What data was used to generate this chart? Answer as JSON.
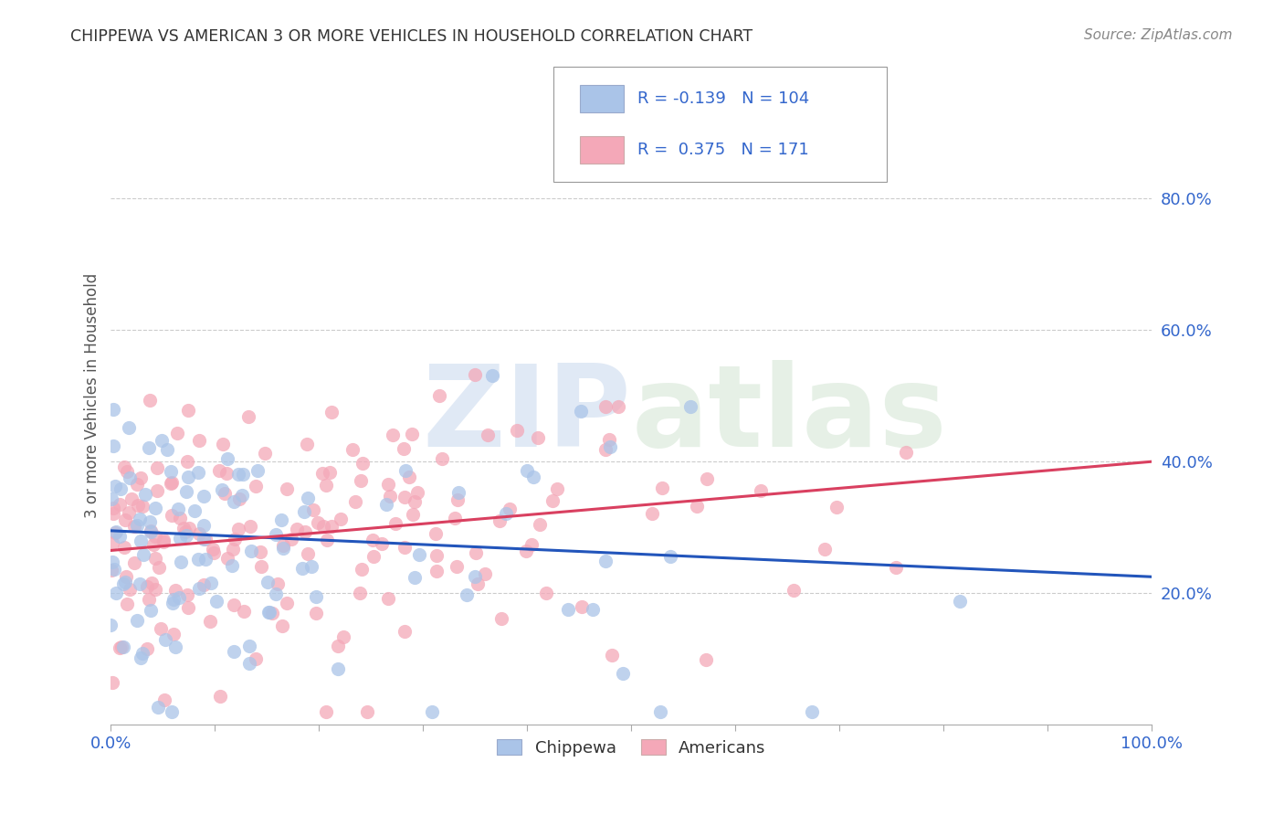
{
  "title": "CHIPPEWA VS AMERICAN 3 OR MORE VEHICLES IN HOUSEHOLD CORRELATION CHART",
  "source": "Source: ZipAtlas.com",
  "ylabel": "3 or more Vehicles in Household",
  "xlim": [
    0,
    1.0
  ],
  "ylim": [
    0,
    1.0
  ],
  "ytick_labels": [
    "20.0%",
    "40.0%",
    "60.0%",
    "80.0%"
  ],
  "ytick_positions": [
    0.2,
    0.4,
    0.6,
    0.8
  ],
  "watermark": "ZIPatlas",
  "chippewa_color": "#aac4e8",
  "american_color": "#f4a8b8",
  "chippewa_line_color": "#2255bb",
  "american_line_color": "#d94060",
  "legend_R_chippewa": "-0.139",
  "legend_N_chippewa": "104",
  "legend_R_american": "0.375",
  "legend_N_american": "171",
  "chippewa_slope": -0.07,
  "chippewa_intercept": 0.295,
  "american_slope": 0.135,
  "american_intercept": 0.265,
  "background_color": "#ffffff",
  "grid_color": "#cccccc",
  "title_color": "#333333",
  "legend_text_color": "#3366cc",
  "seed": 7,
  "n_chippewa": 104,
  "n_american": 171
}
